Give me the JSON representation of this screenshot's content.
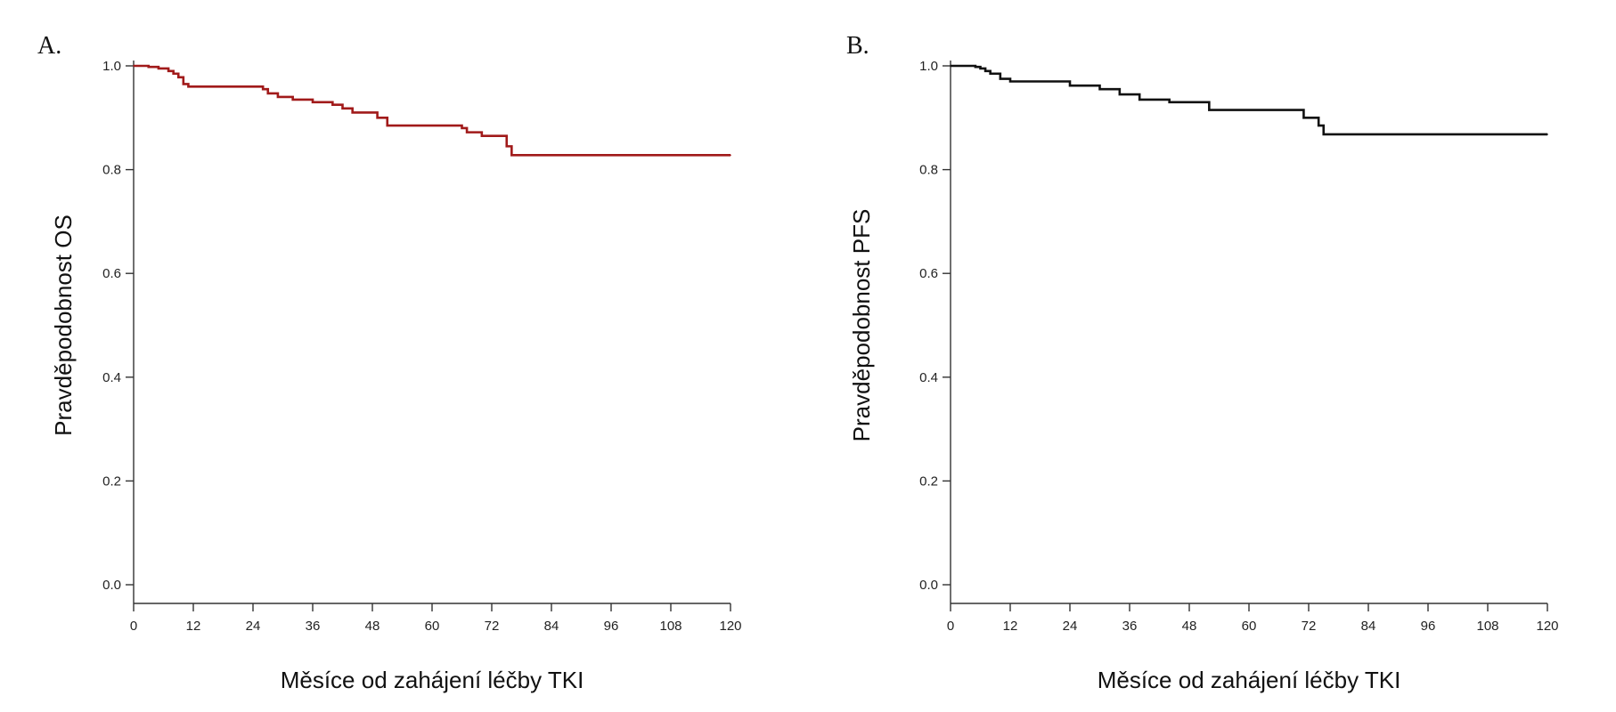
{
  "chart_data": [
    {
      "type": "line",
      "panel": "A.",
      "xlabel": "Měsíce od zahájení léčby TKI",
      "ylabel": "Pravděpodobnost OS",
      "xlim": [
        0,
        120
      ],
      "ylim": [
        0.0,
        1.0
      ],
      "xticks": [
        "0",
        "12",
        "24",
        "36",
        "48",
        "60",
        "72",
        "84",
        "96",
        "108",
        "120"
      ],
      "yticks": [
        "0.0",
        "0.2",
        "0.4",
        "0.6",
        "0.8",
        "1.0"
      ],
      "grid": false,
      "step": true,
      "color": "#a11a1a",
      "x": [
        0,
        3,
        5,
        7,
        8,
        9,
        10,
        11,
        26,
        27,
        29,
        32,
        36,
        40,
        42,
        44,
        49,
        51,
        66,
        67,
        70,
        75,
        76,
        120
      ],
      "y": [
        1.0,
        0.998,
        0.995,
        0.99,
        0.985,
        0.978,
        0.965,
        0.96,
        0.955,
        0.947,
        0.94,
        0.935,
        0.93,
        0.925,
        0.918,
        0.91,
        0.9,
        0.885,
        0.88,
        0.872,
        0.865,
        0.845,
        0.828,
        0.828
      ]
    },
    {
      "type": "line",
      "panel": "B.",
      "xlabel": "Měsíce od zahájení léčby TKI",
      "ylabel": "Pravděpodobnost PFS",
      "xlim": [
        0,
        120
      ],
      "ylim": [
        0.0,
        1.0
      ],
      "xticks": [
        "0",
        "12",
        "24",
        "36",
        "48",
        "60",
        "72",
        "84",
        "96",
        "108",
        "120"
      ],
      "yticks": [
        "0.0",
        "0.2",
        "0.4",
        "0.6",
        "0.8",
        "1.0"
      ],
      "grid": false,
      "step": true,
      "color": "#111111",
      "x": [
        0,
        5,
        6,
        7,
        8,
        10,
        12,
        24,
        30,
        34,
        38,
        44,
        52,
        71,
        74,
        75,
        120
      ],
      "y": [
        1.0,
        0.998,
        0.995,
        0.99,
        0.985,
        0.975,
        0.97,
        0.962,
        0.955,
        0.945,
        0.935,
        0.93,
        0.915,
        0.9,
        0.885,
        0.868,
        0.868
      ]
    }
  ]
}
